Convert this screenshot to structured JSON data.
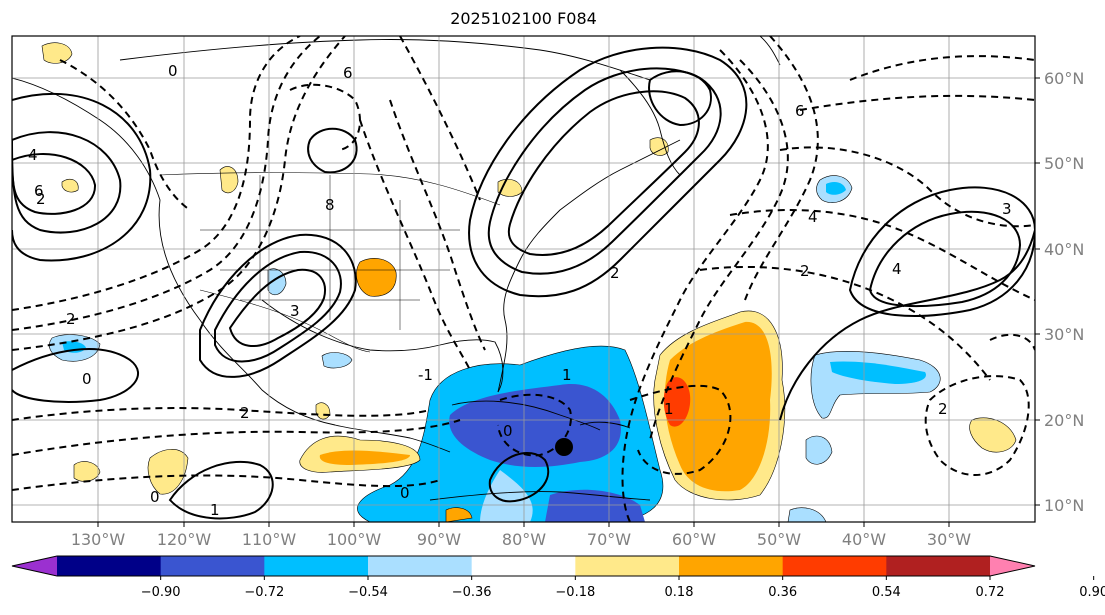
{
  "title": "2025102100 F084",
  "map": {
    "lat_labels": [
      "60°N",
      "50°N",
      "40°N",
      "30°N",
      "20°N",
      "10°N"
    ],
    "lon_labels": [
      "130°W",
      "120°W",
      "110°W",
      "100°W",
      "90°W",
      "80°W",
      "70°W",
      "60°W",
      "50°W",
      "40°W",
      "30°W"
    ],
    "contour_labels": [
      "0",
      "2",
      "4",
      "6",
      "8",
      "1",
      "3",
      "-1",
      "2",
      "0",
      "6",
      "4",
      "2",
      "3",
      "2",
      "1",
      "0",
      "2",
      "1",
      "0",
      "0",
      "2",
      "4",
      "6"
    ],
    "marker": "storm-location"
  },
  "colorbar": {
    "ticks": [
      "−0.90",
      "−0.72",
      "−0.54",
      "−0.36",
      "−0.18",
      "0.18",
      "0.36",
      "0.54",
      "0.72",
      "0.90"
    ],
    "colors": [
      "#9b30d0",
      "#000088",
      "#3a55d0",
      "#00bfff",
      "#aadfff",
      "#ffffff",
      "#ffe98a",
      "#ffa500",
      "#ff3c00",
      "#b02020",
      "#ff80b0"
    ]
  }
}
